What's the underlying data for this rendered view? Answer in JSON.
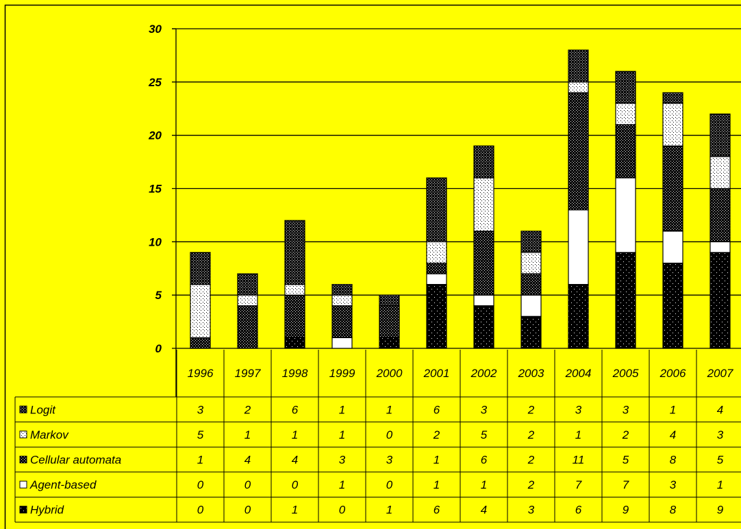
{
  "chart_data": {
    "type": "bar",
    "stacked": true,
    "categories": [
      "1996",
      "1997",
      "1998",
      "1999",
      "2000",
      "2001",
      "2002",
      "2003",
      "2004",
      "2005",
      "2006",
      "2007"
    ],
    "series": [
      {
        "name": "Logit",
        "values": [
          3,
          2,
          6,
          1,
          1,
          6,
          3,
          2,
          3,
          3,
          1,
          4
        ],
        "pattern": "crosshatch-dark"
      },
      {
        "name": "Markov",
        "values": [
          5,
          1,
          1,
          1,
          0,
          2,
          5,
          2,
          1,
          2,
          4,
          3
        ],
        "pattern": "white-dots"
      },
      {
        "name": "Cellular automata",
        "values": [
          1,
          4,
          4,
          3,
          3,
          1,
          6,
          2,
          11,
          5,
          8,
          5
        ],
        "pattern": "black-fine-dots"
      },
      {
        "name": "Agent-based",
        "values": [
          0,
          0,
          0,
          1,
          0,
          1,
          1,
          2,
          7,
          7,
          3,
          1
        ],
        "pattern": "white-solid"
      },
      {
        "name": "Hybrid",
        "values": [
          0,
          0,
          1,
          0,
          1,
          6,
          4,
          3,
          6,
          9,
          8,
          9
        ],
        "pattern": "black-sparse-dots"
      }
    ],
    "yticks": [
      "0",
      "5",
      "10",
      "15",
      "20",
      "25",
      "30"
    ],
    "ylim": [
      0,
      30
    ],
    "grid": true,
    "legend": "data-table",
    "colors": {
      "background": "#ffff00",
      "ink": "#000000",
      "paper": "#ffffff"
    }
  }
}
